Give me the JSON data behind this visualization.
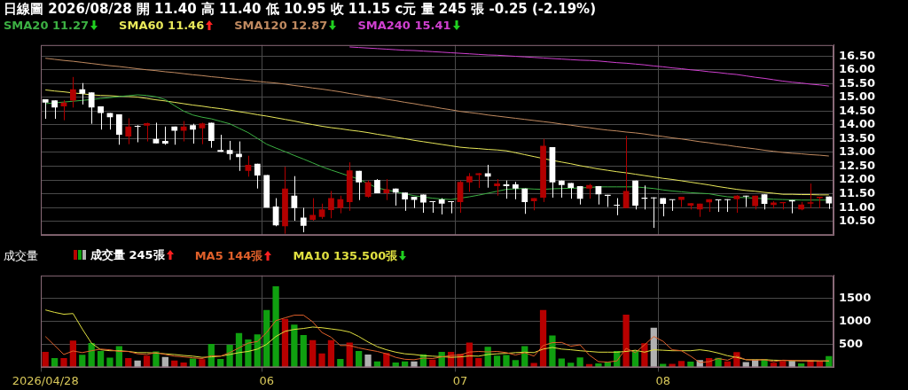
{
  "chart_data": [
    {
      "type": "candlestick",
      "title": "日線圖 2026/08/28 開 11.40 高 11.40 低 10.95 收 11.15 c元 量 245 張 -0.25 (-2.19%)",
      "categories": [
        "2026/04/28",
        null,
        null,
        null,
        null,
        null,
        null,
        null,
        null,
        null,
        null,
        null,
        null,
        null,
        null,
        null,
        null,
        null,
        null,
        null,
        null,
        null,
        null,
        null,
        "06",
        null,
        null,
        null,
        null,
        null,
        null,
        null,
        null,
        null,
        null,
        null,
        null,
        null,
        null,
        null,
        null,
        null,
        null,
        null,
        null,
        "07",
        null,
        null,
        null,
        null,
        null,
        null,
        null,
        null,
        null,
        null,
        null,
        null,
        null,
        null,
        null,
        null,
        null,
        null,
        null,
        null,
        null,
        "08",
        null,
        null,
        null,
        null,
        null,
        null,
        null,
        null,
        null,
        null,
        null,
        null,
        null,
        null,
        null,
        null,
        null,
        null
      ],
      "ohlc": [
        [
          14.93,
          14.93,
          14.22,
          14.81
        ],
        [
          14.89,
          14.89,
          14.22,
          14.63
        ],
        [
          14.67,
          14.9,
          14.17,
          14.81
        ],
        [
          14.88,
          15.74,
          14.63,
          15.29
        ],
        [
          15.29,
          15.52,
          14.74,
          15.13
        ],
        [
          15.18,
          15.18,
          14.04,
          14.63
        ],
        [
          14.67,
          14.67,
          13.83,
          14.43
        ],
        [
          14.43,
          14.43,
          13.83,
          14.28
        ],
        [
          14.38,
          14.38,
          13.28,
          13.64
        ],
        [
          13.58,
          14.24,
          13.3,
          13.94
        ],
        [
          13.96,
          13.99,
          13.37,
          13.93
        ],
        [
          13.97,
          14.08,
          13.4,
          14.06
        ],
        [
          13.49,
          14.08,
          13.33,
          13.33
        ],
        [
          13.42,
          13.94,
          13.28,
          13.32
        ],
        [
          13.94,
          13.94,
          13.28,
          13.79
        ],
        [
          13.79,
          14.14,
          13.4,
          13.94
        ],
        [
          13.99,
          14.04,
          13.32,
          13.83
        ],
        [
          13.88,
          14.08,
          13.3,
          14.05
        ],
        [
          14.08,
          14.08,
          13.17,
          13.42
        ],
        [
          13.09,
          13.64,
          13.02,
          13.02
        ],
        [
          13.09,
          13.42,
          12.73,
          12.94
        ],
        [
          12.95,
          13.4,
          12.33,
          12.83
        ],
        [
          12.33,
          12.88,
          12.12,
          12.55
        ],
        [
          12.59,
          12.59,
          11.69,
          12.16
        ],
        [
          12.18,
          12.18,
          11.0,
          11.0
        ],
        [
          11.04,
          11.34,
          10.32,
          10.35
        ],
        [
          10.32,
          12.48,
          10.05,
          11.69
        ],
        [
          11.43,
          12.14,
          10.52,
          10.98
        ],
        [
          10.63,
          10.99,
          10.1,
          10.34
        ],
        [
          10.55,
          11.34,
          10.52,
          10.73
        ],
        [
          10.66,
          11.14,
          10.59,
          10.93
        ],
        [
          10.91,
          11.6,
          10.61,
          11.34
        ],
        [
          10.98,
          11.43,
          10.79,
          11.3
        ],
        [
          11.2,
          12.64,
          10.88,
          12.35
        ],
        [
          12.33,
          12.33,
          11.27,
          11.91
        ],
        [
          11.39,
          11.98,
          11.36,
          11.92
        ],
        [
          12.0,
          12.03,
          11.52,
          11.52
        ],
        [
          11.52,
          12.03,
          11.27,
          11.66
        ],
        [
          11.69,
          11.69,
          11.07,
          11.54
        ],
        [
          11.54,
          11.54,
          10.88,
          11.29
        ],
        [
          11.39,
          11.39,
          10.98,
          11.28
        ],
        [
          11.47,
          11.47,
          10.81,
          11.18
        ],
        [
          11.23,
          11.23,
          10.81,
          11.2
        ],
        [
          11.29,
          11.34,
          10.75,
          11.14
        ],
        [
          11.23,
          11.23,
          10.79,
          11.2
        ],
        [
          11.2,
          11.98,
          10.81,
          11.93
        ],
        [
          11.91,
          12.25,
          11.57,
          12.14
        ],
        [
          12.18,
          12.25,
          11.71,
          12.24
        ],
        [
          12.24,
          12.55,
          11.72,
          12.12
        ],
        [
          11.78,
          12.03,
          11.43,
          11.87
        ],
        [
          11.84,
          11.98,
          11.32,
          11.78
        ],
        [
          11.84,
          11.93,
          11.3,
          11.69
        ],
        [
          11.69,
          11.69,
          10.77,
          11.2
        ],
        [
          11.23,
          11.34,
          10.9,
          11.34
        ],
        [
          11.36,
          13.49,
          11.2,
          13.24
        ],
        [
          13.19,
          13.19,
          11.36,
          11.91
        ],
        [
          11.98,
          11.98,
          11.36,
          11.82
        ],
        [
          11.89,
          11.89,
          11.32,
          11.71
        ],
        [
          11.78,
          11.78,
          11.11,
          11.32
        ],
        [
          11.69,
          11.86,
          11.32,
          11.82
        ],
        [
          11.78,
          11.78,
          11.11,
          11.48
        ],
        [
          11.46,
          11.46,
          11.02,
          11.42
        ],
        [
          11.09,
          11.34,
          10.72,
          11.07
        ],
        [
          10.98,
          13.6,
          10.98,
          11.6
        ],
        [
          11.98,
          11.98,
          10.93,
          11.07
        ],
        [
          11.36,
          11.8,
          10.93,
          11.32
        ],
        [
          11.37,
          11.37,
          10.26,
          11.33
        ],
        [
          11.34,
          11.34,
          10.68,
          11.13
        ],
        [
          11.29,
          11.29,
          10.88,
          11.27
        ],
        [
          11.28,
          11.39,
          11.02,
          11.39
        ],
        [
          11.07,
          11.16,
          10.93,
          11.16
        ],
        [
          10.93,
          11.14,
          10.66,
          11.14
        ],
        [
          11.19,
          11.3,
          10.84,
          11.3
        ],
        [
          11.29,
          11.29,
          10.84,
          11.26
        ],
        [
          11.3,
          11.3,
          10.84,
          11.27
        ],
        [
          11.3,
          11.45,
          10.81,
          11.43
        ],
        [
          11.43,
          11.43,
          11.02,
          11.4
        ],
        [
          11.05,
          11.43,
          10.93,
          11.43
        ],
        [
          11.48,
          11.48,
          10.93,
          11.13
        ],
        [
          11.09,
          11.23,
          10.96,
          11.18
        ],
        [
          11.16,
          11.2,
          10.93,
          11.2
        ],
        [
          11.27,
          11.27,
          10.79,
          11.22
        ],
        [
          10.93,
          11.2,
          10.9,
          11.11
        ],
        [
          11.14,
          11.87,
          10.98,
          11.19
        ],
        [
          11.34,
          11.39,
          10.98,
          11.39
        ],
        [
          11.4,
          11.4,
          10.95,
          11.15
        ]
      ],
      "colors": [
        "#ffffff",
        "#ffffff",
        "#b20000",
        "#b20000",
        "#ffffff",
        "#ffffff",
        "#ffffff",
        "#ffffff",
        "#ffffff",
        "#b20000",
        "#ffffff",
        "#b20000",
        "#ffffff",
        "#ffffff",
        "#ffffff",
        "#b20000",
        "#ffffff",
        "#b20000",
        "#ffffff",
        "#ffffff",
        "#ffffff",
        "#ffffff",
        "#b20000",
        "#ffffff",
        "#ffffff",
        "#ffffff",
        "#b20000",
        "#ffffff",
        "#ffffff",
        "#b20000",
        "#b20000",
        "#b20000",
        "#b20000",
        "#b20000",
        "#ffffff",
        "#b20000",
        "#ffffff",
        "#b20000",
        "#ffffff",
        "#ffffff",
        "#ffffff",
        "#ffffff",
        "#ffffff",
        "#ffffff",
        "#ffffff",
        "#b20000",
        "#b20000",
        "#b20000",
        "#ffffff",
        "#b20000",
        "#ffffff",
        "#ffffff",
        "#ffffff",
        "#b20000",
        "#b20000",
        "#ffffff",
        "#ffffff",
        "#ffffff",
        "#ffffff",
        "#b20000",
        "#ffffff",
        "#ffffff",
        "#ffffff",
        "#b20000",
        "#ffffff",
        "#ffffff",
        "#ffffff",
        "#ffffff",
        "#ffffff",
        "#b20000",
        "#b20000",
        "#b20000",
        "#b20000",
        "#ffffff",
        "#ffffff",
        "#b20000",
        "#ffffff",
        "#b20000",
        "#ffffff",
        "#b20000",
        "#b20000",
        "#ffffff",
        "#b20000",
        "#b20000",
        "#b20000",
        "#ffffff"
      ],
      "series": [
        {
          "name": "SMA20 11.27",
          "type": "line",
          "color": "#3cb043",
          "values": [
            14.77,
            14.8,
            14.83,
            14.86,
            14.89,
            14.92,
            14.96,
            14.99,
            15.03,
            15.06,
            15.09,
            15.07,
            15.02,
            14.92,
            14.7,
            14.5,
            14.36,
            14.28,
            14.22,
            14.13,
            14.04,
            13.88,
            13.72,
            13.51,
            13.3,
            13.16,
            13.03,
            12.89,
            12.76,
            12.62,
            12.48,
            12.36,
            12.25,
            12.14,
            12.03,
            11.87,
            11.71,
            11.64,
            11.57,
            11.5,
            11.43,
            11.38,
            11.34,
            11.31,
            11.29,
            11.34,
            11.39,
            11.45,
            11.52,
            11.59,
            11.66,
            11.68,
            11.69,
            11.67,
            11.66,
            11.68,
            11.69,
            11.7,
            11.71,
            11.73,
            11.75,
            11.75,
            11.75,
            11.75,
            11.75,
            11.72,
            11.69,
            11.64,
            11.6,
            11.57,
            11.54,
            11.52,
            11.5,
            11.44,
            11.39,
            11.37,
            11.36,
            11.34,
            11.32,
            11.3,
            11.29,
            11.28,
            11.27,
            11.27,
            11.27,
            11.27
          ]
        },
        {
          "name": "SMA60 11.46",
          "type": "line",
          "color": "#e8e85a",
          "values": [
            15.27,
            15.23,
            15.2,
            15.16,
            15.13,
            15.09,
            15.07,
            15.06,
            15.04,
            15.03,
            15.01,
            14.96,
            14.91,
            14.87,
            14.82,
            14.77,
            14.72,
            14.68,
            14.63,
            14.59,
            14.54,
            14.48,
            14.43,
            14.37,
            14.32,
            14.26,
            14.2,
            14.14,
            14.07,
            14.01,
            13.95,
            13.9,
            13.86,
            13.81,
            13.77,
            13.72,
            13.66,
            13.61,
            13.55,
            13.5,
            13.44,
            13.39,
            13.34,
            13.29,
            13.24,
            13.19,
            13.16,
            13.14,
            13.11,
            13.09,
            13.06,
            12.99,
            12.92,
            12.85,
            12.78,
            12.71,
            12.65,
            12.59,
            12.52,
            12.46,
            12.4,
            12.35,
            12.3,
            12.26,
            12.21,
            12.16,
            12.11,
            12.06,
            12.02,
            11.97,
            11.92,
            11.87,
            11.82,
            11.76,
            11.71,
            11.66,
            11.62,
            11.59,
            11.55,
            11.52,
            11.48,
            11.48,
            11.47,
            11.47,
            11.46,
            11.46
          ]
        },
        {
          "name": "SMA120 12.87",
          "type": "line",
          "color": "#c08a60",
          "values": [
            16.42,
            16.38,
            16.34,
            16.31,
            16.27,
            16.23,
            16.19,
            16.15,
            16.12,
            16.08,
            16.04,
            16.0,
            15.97,
            15.93,
            15.9,
            15.86,
            15.82,
            15.79,
            15.75,
            15.72,
            15.68,
            15.65,
            15.62,
            15.58,
            15.55,
            15.52,
            15.48,
            15.43,
            15.39,
            15.34,
            15.3,
            15.25,
            15.2,
            15.14,
            15.09,
            15.04,
            14.99,
            14.93,
            14.88,
            14.82,
            14.77,
            14.71,
            14.66,
            14.6,
            14.55,
            14.49,
            14.45,
            14.41,
            14.36,
            14.32,
            14.28,
            14.24,
            14.2,
            14.16,
            14.12,
            14.08,
            14.03,
            13.99,
            13.94,
            13.9,
            13.85,
            13.81,
            13.78,
            13.74,
            13.71,
            13.67,
            13.62,
            13.58,
            13.53,
            13.49,
            13.44,
            13.39,
            13.35,
            13.3,
            13.26,
            13.21,
            13.17,
            13.13,
            13.08,
            13.04,
            13.0,
            12.97,
            12.95,
            12.92,
            12.9,
            12.87
          ]
        },
        {
          "name": "SMA240 15.41",
          "type": "line",
          "color": "#d040d0",
          "values": [
            null,
            null,
            null,
            null,
            null,
            null,
            null,
            null,
            null,
            null,
            null,
            null,
            null,
            null,
            null,
            null,
            null,
            null,
            null,
            null,
            null,
            null,
            null,
            null,
            null,
            null,
            null,
            null,
            null,
            null,
            null,
            null,
            null,
            16.83,
            16.81,
            16.79,
            16.77,
            16.75,
            16.73,
            16.71,
            16.7,
            16.68,
            16.66,
            16.64,
            16.62,
            16.6,
            16.58,
            16.56,
            16.54,
            16.53,
            16.51,
            16.49,
            16.47,
            16.45,
            16.43,
            16.41,
            16.39,
            16.37,
            16.35,
            16.34,
            16.32,
            16.29,
            16.26,
            16.24,
            16.21,
            16.18,
            16.14,
            16.11,
            16.07,
            16.04,
            16.0,
            15.97,
            15.93,
            15.9,
            15.86,
            15.83,
            15.78,
            15.73,
            15.69,
            15.64,
            15.59,
            15.55,
            15.52,
            15.48,
            15.45,
            15.41
          ]
        }
      ],
      "ylim": [
        10.0,
        16.9
      ],
      "yticks": [
        {
          "value": 10.5,
          "label": "10.50"
        },
        {
          "value": 11,
          "label": "11.00"
        },
        {
          "value": 11.5,
          "label": "11.50"
        },
        {
          "value": 12,
          "label": "12.00"
        },
        {
          "value": 12.5,
          "label": "12.50"
        },
        {
          "value": 13,
          "label": "13.00"
        },
        {
          "value": 13.5,
          "label": "13.50"
        },
        {
          "value": 14,
          "label": "14.00"
        },
        {
          "value": 14.5,
          "label": "14.50"
        },
        {
          "value": 15,
          "label": "15.00"
        },
        {
          "value": 15.5,
          "label": "15.50"
        },
        {
          "value": 16,
          "label": "16.00"
        },
        {
          "value": 16.5,
          "label": "16.50"
        }
      ],
      "grid": true,
      "legend": "top left",
      "tick_labels": "y",
      "marker": "none"
    },
    {
      "type": "bar",
      "title": "成交量",
      "categories": [
        "2026/04/28",
        null,
        null,
        null,
        null,
        null,
        null,
        null,
        null,
        null,
        null,
        null,
        null,
        null,
        null,
        null,
        null,
        null,
        null,
        null,
        null,
        null,
        null,
        null,
        "06",
        null,
        null,
        null,
        null,
        null,
        null,
        null,
        null,
        null,
        null,
        null,
        null,
        null,
        null,
        null,
        null,
        null,
        null,
        null,
        null,
        "07",
        null,
        null,
        null,
        null,
        null,
        null,
        null,
        null,
        null,
        null,
        null,
        null,
        null,
        null,
        null,
        null,
        null,
        null,
        null,
        null,
        null,
        "08",
        null,
        null,
        null,
        null,
        null,
        null,
        null,
        null,
        null,
        null,
        null,
        null,
        null,
        null,
        null,
        null,
        null,
        null
      ],
      "series": [
        {
          "name": "成交量 245張",
          "type": "bar",
          "values": [
            335,
            200,
            200,
            583,
            273,
            531,
            356,
            211,
            459,
            200,
            150,
            253,
            346,
            227,
            150,
            103,
            191,
            175,
            511,
            181,
            490,
            748,
            604,
            717,
            1249,
            1765,
            1053,
            929,
            702,
            593,
            304,
            593,
            181,
            537,
            356,
            279,
            129,
            310,
            103,
            129,
            129,
            284,
            165,
            335,
            335,
            294,
            540,
            201,
            449,
            253,
            268,
            155,
            459,
            93,
            1249,
            691,
            191,
            98,
            217,
            72,
            83,
            119,
            356,
            1146,
            372,
            526,
            862,
            77,
            77,
            139,
            124,
            155,
            201,
            206,
            129,
            330,
            114,
            165,
            175,
            98,
            139,
            139,
            83,
            155,
            139,
            245
          ],
          "colors": [
            "#b80000",
            "#10a010",
            "#b80000",
            "#b80000",
            "#10a010",
            "#10a010",
            "#10a010",
            "#10a010",
            "#10a010",
            "#b80000",
            "#b0b0b0",
            "#b80000",
            "#10a010",
            "#b0b0b0",
            "#b80000",
            "#b80000",
            "#10a010",
            "#b80000",
            "#10a010",
            "#10a010",
            "#10a010",
            "#10a010",
            "#10a010",
            "#10a010",
            "#10a010",
            "#10a010",
            "#b80000",
            "#10a010",
            "#10a010",
            "#b80000",
            "#b80000",
            "#b80000",
            "#10a010",
            "#b80000",
            "#10a010",
            "#b0b0b0",
            "#10a010",
            "#b80000",
            "#10a010",
            "#10a010",
            "#b0b0b0",
            "#10a010",
            "#b80000",
            "#10a010",
            "#b80000",
            "#b80000",
            "#b80000",
            "#b80000",
            "#10a010",
            "#10a010",
            "#10a010",
            "#10a010",
            "#10a010",
            "#b80000",
            "#b80000",
            "#10a010",
            "#10a010",
            "#10a010",
            "#10a010",
            "#b80000",
            "#10a010",
            "#10a010",
            "#10a010",
            "#b80000",
            "#10a010",
            "#b80000",
            "#b0b0b0",
            "#10a010",
            "#b80000",
            "#b80000",
            "#10a010",
            "#b0b0b0",
            "#b80000",
            "#10a010",
            "#b80000",
            "#b80000",
            "#b0b0b0",
            "#b0b0b0",
            "#10a010",
            "#b80000",
            "#b80000",
            "#b0b0b0",
            "#10a010",
            "#b80000",
            "#b80000",
            "#10a010"
          ]
        },
        {
          "name": "MA5 144張",
          "type": "line",
          "color": "#e0602a",
          "values": [
            671,
            475,
            279,
            356,
            320,
            361,
            397,
            382,
            346,
            346,
            294,
            279,
            320,
            279,
            243,
            227,
            206,
            191,
            253,
            243,
            320,
            423,
            526,
            562,
            759,
            1017,
            1078,
            1135,
            1135,
            991,
            759,
            655,
            475,
            475,
            423,
            382,
            346,
            294,
            217,
            175,
            165,
            201,
            191,
            227,
            258,
            268,
            333,
            346,
            335,
            346,
            320,
            268,
            320,
            243,
            475,
            537,
            542,
            459,
            490,
            268,
            124,
            114,
            139,
            413,
            320,
            490,
            671,
            568,
            382,
            361,
            243,
            103,
            124,
            191,
            155,
            243,
            165,
            155,
            165,
            124,
            155,
            150,
            139,
            150,
            139,
            144
          ]
        },
        {
          "name": "MA10 135.500張",
          "type": "line",
          "color": "#e0e040",
          "values": [
            1249,
            1197,
            1156,
            1171,
            836,
            526,
            382,
            361,
            361,
            346,
            320,
            320,
            310,
            294,
            279,
            258,
            243,
            217,
            227,
            243,
            279,
            320,
            346,
            397,
            501,
            671,
            784,
            826,
            846,
            877,
            862,
            836,
            810,
            769,
            671,
            552,
            449,
            382,
            330,
            294,
            279,
            253,
            243,
            232,
            217,
            227,
            248,
            243,
            279,
            294,
            304,
            320,
            330,
            320,
            397,
            433,
            397,
            382,
            361,
            346,
            330,
            330,
            330,
            346,
            372,
            330,
            382,
            372,
            361,
            361,
            361,
            382,
            356,
            310,
            253,
            217,
            165,
            165,
            165,
            155,
            150,
            144,
            144,
            139,
            139,
            135.5
          ]
        }
      ],
      "ylim": [
        0,
        2000
      ],
      "yticks": [
        500,
        1000,
        1500
      ],
      "grid": true,
      "legend": "top left",
      "marker": "none"
    }
  ]
}
